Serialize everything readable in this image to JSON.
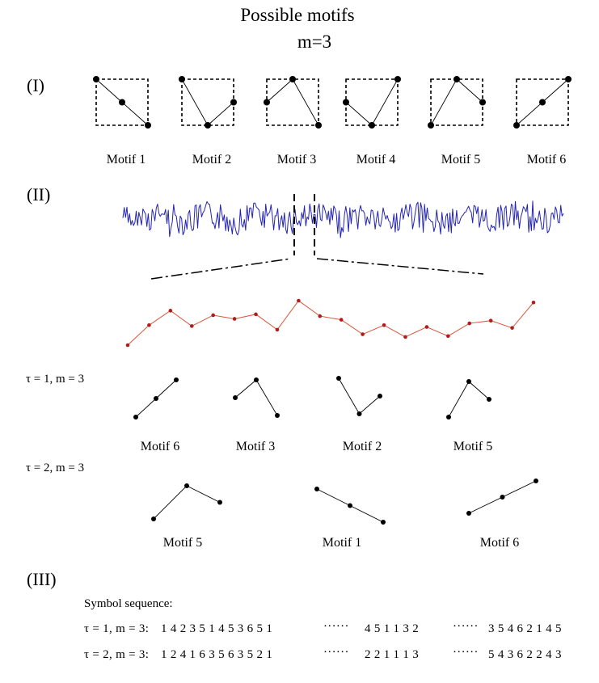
{
  "title": "Possible motifs",
  "subtitle": "m=3",
  "sections": {
    "s1": "(I)",
    "s2": "(II)",
    "s3": "(III)"
  },
  "motifs": [
    {
      "label": "Motif 1",
      "pattern": [
        1,
        2,
        3
      ]
    },
    {
      "label": "Motif 2",
      "pattern": [
        1,
        3,
        2
      ]
    },
    {
      "label": "Motif 3",
      "pattern": [
        2,
        1,
        3
      ]
    },
    {
      "label": "Motif 4",
      "pattern": [
        2,
        3,
        1
      ]
    },
    {
      "label": "Motif 5",
      "pattern": [
        3,
        1,
        2
      ]
    },
    {
      "label": "Motif 6",
      "pattern": [
        3,
        2,
        1
      ]
    }
  ],
  "colors": {
    "signal": "#2323b4",
    "segment": "#d9563a",
    "segment_point": "#b01b1b",
    "ink": "#000000"
  },
  "segment_values": [
    4.7,
    6.9,
    8.5,
    6.8,
    8.0,
    7.6,
    8.1,
    6.4,
    9.6,
    7.9,
    7.5,
    5.9,
    6.9,
    5.6,
    6.7,
    5.7,
    7.1,
    7.4,
    6.6,
    9.4
  ],
  "tau1": {
    "label": "τ = 1, m = 3",
    "examples": [
      {
        "label": "Motif 6",
        "pattern": [
          3,
          2,
          1
        ]
      },
      {
        "label": "Motif 3",
        "pattern": [
          2,
          1,
          3
        ]
      },
      {
        "label": "Motif 2",
        "pattern": [
          1,
          3,
          2
        ]
      },
      {
        "label": "Motif 5",
        "pattern": [
          3,
          1,
          2
        ]
      }
    ]
  },
  "tau2": {
    "label": "τ = 2, m = 3",
    "examples": [
      {
        "label": "Motif 5",
        "pattern": [
          3,
          1,
          2
        ]
      },
      {
        "label": "Motif 1",
        "pattern": [
          1,
          2,
          3
        ]
      },
      {
        "label": "Motif 6",
        "pattern": [
          3,
          2,
          1
        ]
      }
    ]
  },
  "symbol_sequence": {
    "heading": "Symbol sequence:",
    "row1_prefix": "τ = 1, m = 3:",
    "row1_part1": "1 4 2 3 5 1 4 5 3 6 5 1",
    "row1_part2": "4 5 1 1 3 2",
    "row1_part3": "3 5 4 6 2 1 4 5",
    "row2_prefix": "τ = 2, m = 3:",
    "row2_part1": "1 2 4 1 6 3 5 6 3 5 2 1",
    "row2_part2": "2 2 1 1 1 3",
    "row2_part3": "5 4 3 6 2 2 4 3",
    "ellipsis": "······"
  }
}
